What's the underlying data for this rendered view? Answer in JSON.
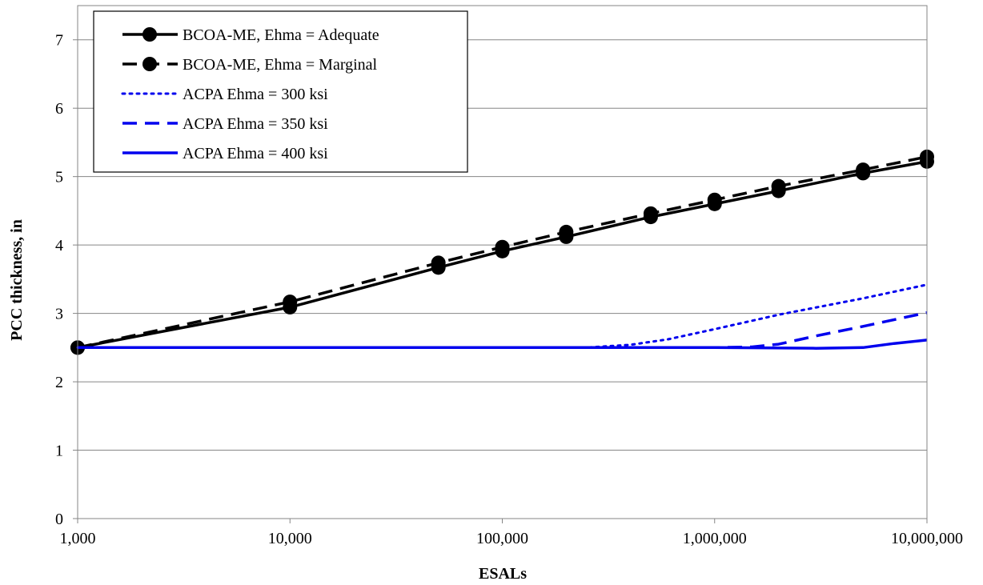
{
  "chart_data": {
    "type": "line",
    "x_scale": "log",
    "xlabel": "ESALs",
    "ylabel": "PCC thickness, in",
    "xlim": [
      1000,
      10000000
    ],
    "ylim": [
      0,
      7.5
    ],
    "grid": "horizontal",
    "legend_position": "top-left",
    "x_ticks": [
      1000,
      10000,
      100000,
      1000000,
      10000000
    ],
    "x_tick_labels": [
      "1,000",
      "10,000",
      "100,000",
      "1,000,000",
      "10,000,000"
    ],
    "y_ticks": [
      0,
      1,
      2,
      3,
      4,
      5,
      6,
      7
    ],
    "y_tick_labels": [
      "0",
      "1",
      "2",
      "3",
      "4",
      "5",
      "6",
      "7"
    ],
    "series": [
      {
        "name": "BCOA-ME, Ehma = Adequate",
        "color": "#000000",
        "dash": "solid",
        "markers": true,
        "x": [
          1000,
          10000,
          50000,
          100000,
          200000,
          500000,
          1000000,
          2000000,
          5000000,
          10000000
        ],
        "y": [
          2.5,
          3.09,
          3.67,
          3.91,
          4.12,
          4.41,
          4.6,
          4.79,
          5.05,
          5.22
        ]
      },
      {
        "name": "BCOA-ME, Ehma = Marginal",
        "color": "#000000",
        "dash": "dashed",
        "markers": true,
        "x": [
          1000,
          10000,
          50000,
          100000,
          200000,
          500000,
          1000000,
          2000000,
          5000000,
          10000000
        ],
        "y": [
          2.5,
          3.17,
          3.74,
          3.97,
          4.19,
          4.46,
          4.66,
          4.86,
          5.1,
          5.29
        ]
      },
      {
        "name": "ACPA Ehma = 300 ksi",
        "color": "#0000ee",
        "dash": "dotted",
        "markers": false,
        "x": [
          1000,
          10000,
          100000,
          250000,
          400000,
          600000,
          1000000,
          2000000,
          5000000,
          10000000
        ],
        "y": [
          2.5,
          2.5,
          2.5,
          2.5,
          2.54,
          2.62,
          2.77,
          2.98,
          3.22,
          3.42
        ]
      },
      {
        "name": "ACPA Ehma = 350 ksi",
        "color": "#0000ee",
        "dash": "dashed",
        "markers": false,
        "x": [
          1000,
          10000,
          100000,
          1000000,
          1500000,
          2000000,
          3000000,
          5000000,
          10000000
        ],
        "y": [
          2.5,
          2.5,
          2.5,
          2.5,
          2.51,
          2.55,
          2.67,
          2.81,
          3.01
        ]
      },
      {
        "name": "ACPA Ehma = 400 ksi",
        "color": "#0000ee",
        "dash": "solid",
        "markers": false,
        "x": [
          1000,
          10000,
          100000,
          1000000,
          3000000,
          5000000,
          7000000,
          10000000
        ],
        "y": [
          2.5,
          2.5,
          2.5,
          2.5,
          2.49,
          2.5,
          2.56,
          2.61
        ]
      }
    ]
  }
}
